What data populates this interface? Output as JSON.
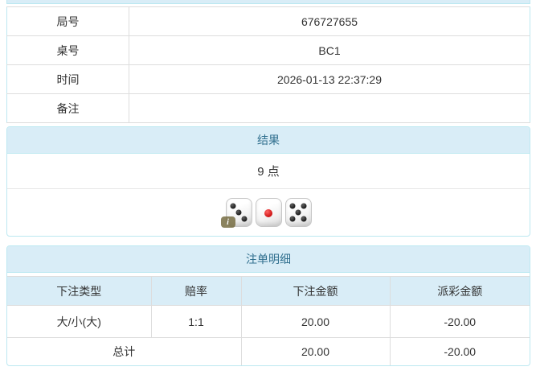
{
  "colors": {
    "header_bg": "#d9edf7",
    "header_text": "#31708f",
    "panel_border": "#bce8f1",
    "cell_border": "#dddddd",
    "text": "#333333",
    "negative": "#e60000"
  },
  "info_table": {
    "rows": [
      {
        "label": "局号",
        "value": "676727655"
      },
      {
        "label": "桌号",
        "value": "BC1"
      },
      {
        "label": "时间",
        "value": "2026-01-13 22:37:29"
      },
      {
        "label": "备注",
        "value": ""
      }
    ]
  },
  "result_panel": {
    "title": "结果",
    "points": "9 点",
    "dice": [
      {
        "value": 3,
        "pip_color": "#1a1a1a"
      },
      {
        "value": 1,
        "pip_color": "#cc1111"
      },
      {
        "value": 5,
        "pip_color": "#1a1a1a"
      }
    ],
    "info_badge": "i"
  },
  "bets_panel": {
    "title": "注单明细",
    "columns": [
      "下注类型",
      "赔率",
      "下注金额",
      "派彩金额"
    ],
    "rows": [
      {
        "type": "大/小(大)",
        "odds": "1:1",
        "bet": "20.00",
        "payout": "-20.00"
      }
    ],
    "total": {
      "label": "总计",
      "bet": "20.00",
      "payout": "-20.00"
    }
  }
}
